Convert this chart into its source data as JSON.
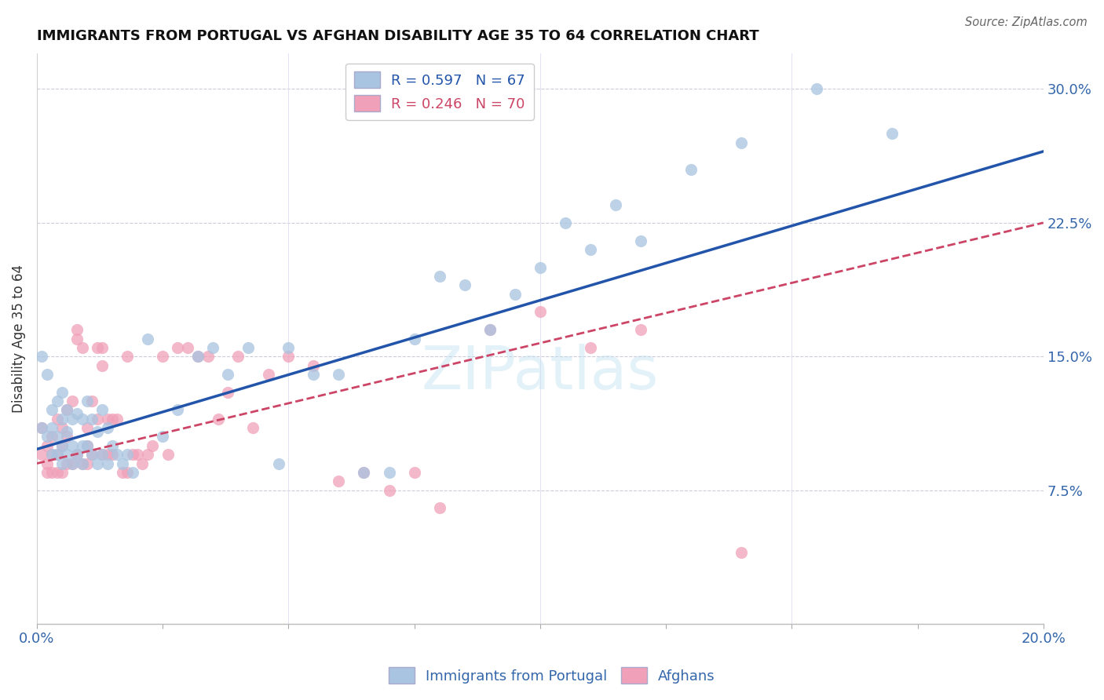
{
  "title": "IMMIGRANTS FROM PORTUGAL VS AFGHAN DISABILITY AGE 35 TO 64 CORRELATION CHART",
  "source": "Source: ZipAtlas.com",
  "ylabel": "Disability Age 35 to 64",
  "xlim": [
    0.0,
    0.2
  ],
  "ylim": [
    0.0,
    0.32
  ],
  "color_blue": "#A8C4E0",
  "color_pink": "#F0A0B8",
  "color_line_blue": "#2255AA",
  "color_line_pink": "#CC4466",
  "legend_r1": "R = 0.597",
  "legend_n1": "N = 67",
  "legend_r2": "R = 0.246",
  "legend_n2": "N = 70",
  "blue_line_x0": 0.0,
  "blue_line_y0": 0.098,
  "blue_line_x1": 0.2,
  "blue_line_y1": 0.265,
  "pink_line_x0": 0.0,
  "pink_line_y0": 0.09,
  "pink_line_x1": 0.2,
  "pink_line_y1": 0.225,
  "blue_x": [
    0.001,
    0.001,
    0.002,
    0.002,
    0.003,
    0.003,
    0.003,
    0.004,
    0.004,
    0.004,
    0.005,
    0.005,
    0.005,
    0.005,
    0.006,
    0.006,
    0.006,
    0.007,
    0.007,
    0.007,
    0.008,
    0.008,
    0.009,
    0.009,
    0.009,
    0.01,
    0.01,
    0.011,
    0.011,
    0.012,
    0.012,
    0.013,
    0.013,
    0.014,
    0.014,
    0.015,
    0.016,
    0.017,
    0.018,
    0.019,
    0.022,
    0.025,
    0.028,
    0.032,
    0.035,
    0.038,
    0.042,
    0.048,
    0.05,
    0.055,
    0.06,
    0.065,
    0.07,
    0.075,
    0.08,
    0.085,
    0.09,
    0.095,
    0.1,
    0.105,
    0.11,
    0.115,
    0.12,
    0.13,
    0.14,
    0.155,
    0.17
  ],
  "blue_y": [
    0.15,
    0.11,
    0.14,
    0.105,
    0.12,
    0.11,
    0.095,
    0.125,
    0.105,
    0.095,
    0.13,
    0.115,
    0.1,
    0.09,
    0.12,
    0.108,
    0.095,
    0.115,
    0.1,
    0.09,
    0.118,
    0.095,
    0.115,
    0.1,
    0.09,
    0.125,
    0.1,
    0.115,
    0.095,
    0.108,
    0.09,
    0.12,
    0.095,
    0.11,
    0.09,
    0.1,
    0.095,
    0.09,
    0.095,
    0.085,
    0.16,
    0.105,
    0.12,
    0.15,
    0.155,
    0.14,
    0.155,
    0.09,
    0.155,
    0.14,
    0.14,
    0.085,
    0.085,
    0.16,
    0.195,
    0.19,
    0.165,
    0.185,
    0.2,
    0.225,
    0.21,
    0.235,
    0.215,
    0.255,
    0.27,
    0.3,
    0.275
  ],
  "pink_x": [
    0.001,
    0.001,
    0.002,
    0.002,
    0.002,
    0.003,
    0.003,
    0.003,
    0.004,
    0.004,
    0.004,
    0.005,
    0.005,
    0.005,
    0.006,
    0.006,
    0.006,
    0.007,
    0.007,
    0.008,
    0.008,
    0.008,
    0.009,
    0.009,
    0.01,
    0.01,
    0.01,
    0.011,
    0.011,
    0.012,
    0.012,
    0.013,
    0.013,
    0.013,
    0.014,
    0.014,
    0.015,
    0.015,
    0.016,
    0.017,
    0.018,
    0.018,
    0.019,
    0.02,
    0.021,
    0.022,
    0.023,
    0.025,
    0.026,
    0.028,
    0.03,
    0.032,
    0.034,
    0.036,
    0.038,
    0.04,
    0.043,
    0.046,
    0.05,
    0.055,
    0.06,
    0.065,
    0.07,
    0.075,
    0.08,
    0.09,
    0.1,
    0.11,
    0.12,
    0.14
  ],
  "pink_y": [
    0.095,
    0.11,
    0.1,
    0.09,
    0.085,
    0.105,
    0.095,
    0.085,
    0.115,
    0.095,
    0.085,
    0.11,
    0.1,
    0.085,
    0.12,
    0.105,
    0.09,
    0.125,
    0.09,
    0.16,
    0.165,
    0.095,
    0.155,
    0.09,
    0.11,
    0.1,
    0.09,
    0.125,
    0.095,
    0.155,
    0.115,
    0.155,
    0.145,
    0.095,
    0.115,
    0.095,
    0.115,
    0.095,
    0.115,
    0.085,
    0.15,
    0.085,
    0.095,
    0.095,
    0.09,
    0.095,
    0.1,
    0.15,
    0.095,
    0.155,
    0.155,
    0.15,
    0.15,
    0.115,
    0.13,
    0.15,
    0.11,
    0.14,
    0.15,
    0.145,
    0.08,
    0.085,
    0.075,
    0.085,
    0.065,
    0.165,
    0.175,
    0.155,
    0.165,
    0.04
  ]
}
